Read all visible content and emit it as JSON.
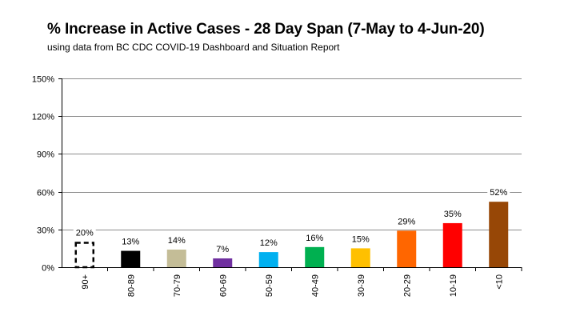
{
  "chart_data": {
    "type": "bar",
    "title": "% Increase in Active Cases  - 28 Day Span (7-May to 4-Jun-20)",
    "subtitle": "using data from BC CDC COVID-19 Dashboard and Situation Report",
    "xlabel": "",
    "ylabel": "",
    "ylim": [
      0,
      150
    ],
    "yticks": [
      0,
      30,
      60,
      90,
      120,
      150
    ],
    "ytick_labels": [
      "0%",
      "30%",
      "60%",
      "90%",
      "120%",
      "150%"
    ],
    "grid": true,
    "legend": "none",
    "categories": [
      "90+",
      "80-89",
      "70-79",
      "60-69",
      "50-59",
      "40-49",
      "30-39",
      "20-29",
      "10-19",
      "<10"
    ],
    "values": [
      20,
      13,
      14,
      7,
      12,
      16,
      15,
      29,
      35,
      52
    ],
    "data_labels": [
      "20%",
      "13%",
      "14%",
      "7%",
      "12%",
      "16%",
      "15%",
      "29%",
      "35%",
      "52%"
    ],
    "colors": [
      "#ffffff",
      "#000000",
      "#c4bd97",
      "#7030a0",
      "#00b0f0",
      "#00b050",
      "#ffc000",
      "#ff6600",
      "#ff0000",
      "#974706"
    ],
    "bar_styles": [
      "dashed-outline",
      "solid",
      "solid",
      "solid",
      "solid",
      "solid",
      "solid",
      "solid",
      "solid",
      "solid"
    ]
  }
}
